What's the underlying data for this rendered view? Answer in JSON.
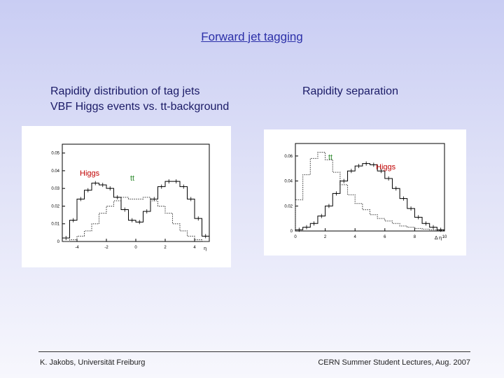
{
  "slide": {
    "title": "Forward jet tagging",
    "left_caption_line1": "Rapidity distribution of tag jets",
    "left_caption_line2": "VBF Higgs events vs. tt-background",
    "right_caption": "Rapidity separation",
    "footer_left": "K. Jakobs,  Universität Freiburg",
    "footer_right": "CERN Summer Student Lectures,  Aug. 2007"
  },
  "chart_data": [
    {
      "type": "line",
      "title": "",
      "xlabel": "η",
      "ylabel": "",
      "xlim": [
        -5,
        5
      ],
      "ylim": [
        0,
        0.055
      ],
      "x_ticks": [
        -4,
        -2,
        0,
        2,
        4
      ],
      "x_tick_labels": [
        "-4",
        "-2",
        "0",
        "2",
        "4"
      ],
      "y_ticks": [
        0,
        0.01,
        0.02,
        0.03,
        0.04,
        0.05
      ],
      "y_tick_labels": [
        "0",
        "0.01",
        "0.02",
        "0.03",
        "0.04",
        "0.05"
      ],
      "x": [
        -4.75,
        -4.25,
        -3.75,
        -3.25,
        -2.75,
        -2.25,
        -1.75,
        -1.25,
        -0.75,
        -0.25,
        0.25,
        0.75,
        1.25,
        1.75,
        2.25,
        2.75,
        3.25,
        3.75,
        4.25,
        4.75
      ],
      "series": [
        {
          "label": "Higgs",
          "color": "#000000",
          "style": "histogram",
          "label_color": "#c00000",
          "values": [
            0.002,
            0.012,
            0.024,
            0.029,
            0.033,
            0.032,
            0.03,
            0.025,
            0.018,
            0.012,
            0.011,
            0.017,
            0.024,
            0.031,
            0.034,
            0.034,
            0.031,
            0.024,
            0.013,
            0.003
          ]
        },
        {
          "label": "tt",
          "color": "#333333",
          "style": "dotted",
          "label_color": "#2e8b2e",
          "values": [
            0.0,
            0.001,
            0.003,
            0.006,
            0.01,
            0.016,
            0.02,
            0.023,
            0.025,
            0.024,
            0.024,
            0.025,
            0.023,
            0.02,
            0.016,
            0.01,
            0.006,
            0.003,
            0.001,
            0.0
          ]
        }
      ]
    },
    {
      "type": "line",
      "title": "",
      "xlabel": "Δ η",
      "ylabel": "",
      "xlim": [
        0,
        10
      ],
      "ylim": [
        0,
        0.07
      ],
      "x_ticks": [
        0,
        2,
        4,
        6,
        8,
        10
      ],
      "x_tick_labels": [
        "0",
        "2",
        "4",
        "6",
        "8",
        "10"
      ],
      "y_ticks": [
        0,
        0.02,
        0.04,
        0.06
      ],
      "y_tick_labels": [
        "0",
        "0.02",
        "0.04",
        "0.06"
      ],
      "x": [
        0.25,
        0.75,
        1.25,
        1.75,
        2.25,
        2.75,
        3.25,
        3.75,
        4.25,
        4.75,
        5.25,
        5.75,
        6.25,
        6.75,
        7.25,
        7.75,
        8.25,
        8.75,
        9.25,
        9.75
      ],
      "series": [
        {
          "label": "tt",
          "color": "#333333",
          "style": "dotted",
          "label_color": "#2e8b2e",
          "values": [
            0.025,
            0.045,
            0.058,
            0.063,
            0.057,
            0.047,
            0.037,
            0.029,
            0.022,
            0.017,
            0.013,
            0.01,
            0.008,
            0.006,
            0.004,
            0.003,
            0.002,
            0.0015,
            0.001,
            0.0005
          ]
        },
        {
          "label": "Higgs",
          "color": "#000000",
          "style": "histogram",
          "label_color": "#c00000",
          "values": [
            0.001,
            0.003,
            0.006,
            0.012,
            0.02,
            0.03,
            0.04,
            0.048,
            0.052,
            0.054,
            0.053,
            0.048,
            0.042,
            0.034,
            0.026,
            0.018,
            0.011,
            0.006,
            0.003,
            0.001
          ]
        }
      ]
    }
  ]
}
